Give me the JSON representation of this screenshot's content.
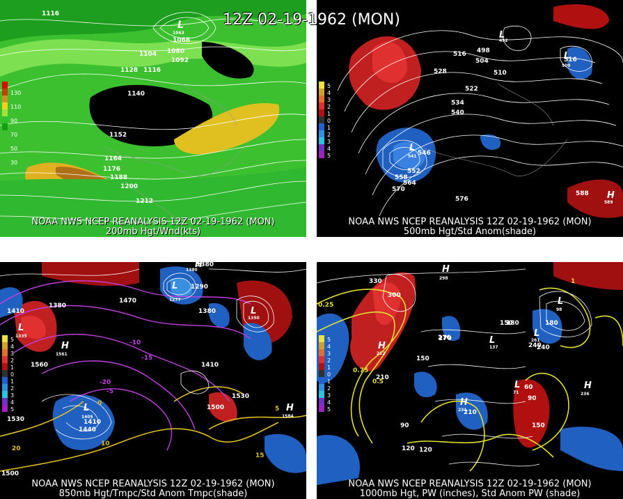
{
  "title": "12Z 02-19-1962 (MON)",
  "panels": [
    {
      "id": "p1",
      "caption_1": "NOAA NWS NCEP REANALYSIS 12Z 02-19-1962 (MON)",
      "caption_2": "200mb Hgt/Wnd(kts)",
      "colorbar": [
        "130",
        "110",
        "90",
        "70",
        "50",
        "30"
      ],
      "contour_labels": [
        "1116",
        "1068",
        "1080",
        "1092",
        "1104",
        "1116",
        "1128",
        "1140",
        "1152",
        "1164",
        "1176",
        "1188",
        "1200",
        "1212"
      ],
      "low_label": "L",
      "low_value": "1063"
    },
    {
      "id": "p2",
      "caption_1": "NOAA NWS NCEP REANALYSIS 12Z 02-19-1962 (MON)",
      "caption_2": "500mb Hgt/Std Anom(shade)",
      "colorbar": [
        "5",
        "4",
        "3",
        "2",
        "1",
        "0",
        "1",
        "2",
        "3",
        "4",
        "5"
      ],
      "contour_labels": [
        "516",
        "498",
        "504",
        "510",
        "516",
        "522",
        "528",
        "534",
        "540",
        "546",
        "552",
        "558",
        "564",
        "570",
        "576",
        "588"
      ],
      "highs": [
        {
          "label": "H",
          "value": "589"
        }
      ],
      "lows": [
        {
          "label": "L",
          "value": "492"
        },
        {
          "label": "L",
          "value": "509"
        },
        {
          "label": "L",
          "value": "541"
        }
      ]
    },
    {
      "id": "p3",
      "caption_1": "NOAA NWS NCEP REANALYSIS 12Z 02-19-1962 (MON)",
      "caption_2": "850mb Hgt/Tmpc/Std Anom Tmpc(shade)",
      "colorbar": [
        "5",
        "4",
        "3",
        "2",
        "1",
        "0",
        "1",
        "2",
        "3",
        "4",
        "5"
      ],
      "contour_labels": [
        "1410",
        "1380",
        "1290",
        "1380",
        "1470",
        "1560",
        "1410",
        "1530",
        "1380",
        "1500",
        "1440",
        "1410",
        "1530",
        "1500"
      ],
      "temp_labels": [
        "-20",
        "-15",
        "-10",
        "-5",
        "0",
        "5",
        "10",
        "15",
        "20"
      ],
      "highs": [
        {
          "label": "H",
          "value": "1380"
        },
        {
          "label": "H",
          "value": "1561"
        },
        {
          "label": "H",
          "value": "1584"
        }
      ],
      "lows": [
        {
          "label": "L",
          "value": "1277"
        },
        {
          "label": "L",
          "value": "1350"
        },
        {
          "label": "L",
          "value": "1335"
        },
        {
          "label": "L",
          "value": "1405"
        }
      ]
    },
    {
      "id": "p4",
      "caption_1": "NOAA NWS NCEP REANALYSIS 12Z 02-19-1962 (MON)",
      "caption_2": "1000mb Hgt, PW (inches), Std Anom PW (shade)",
      "colorbar": [
        "5",
        "4",
        "3",
        "2",
        "1",
        "0",
        "1",
        "2",
        "3",
        "4",
        "5"
      ],
      "contour_labels": [
        "330",
        "300",
        "270",
        "240",
        "210",
        "180",
        "150",
        "120",
        "90",
        "60",
        "270",
        "240",
        "210",
        "150",
        "90",
        "180",
        "150",
        "120"
      ],
      "pw_labels": [
        "0.25",
        "0.5",
        "0.75",
        "1"
      ],
      "highs": [
        {
          "label": "H",
          "value": "298"
        },
        {
          "label": "H",
          "value": "212"
        },
        {
          "label": "H",
          "value": "231"
        },
        {
          "label": "H",
          "value": "236"
        }
      ],
      "lows": [
        {
          "label": "L",
          "value": "137"
        },
        {
          "label": "L",
          "value": "261"
        },
        {
          "label": "L",
          "value": "71"
        },
        {
          "label": "L",
          "value": "98"
        }
      ]
    }
  ],
  "colors": {
    "p1_scale": [
      "#e00000",
      "#c04000",
      "#d09020",
      "#f0d020",
      "#a0e040",
      "#30c030",
      "#10a010"
    ],
    "anom_scale": [
      "#f0e040",
      "#d0a030",
      "#e07030",
      "#e03030",
      "#b01010",
      "#303030",
      "#2060d0",
      "#3090e0",
      "#30c0e0",
      "#7030c0",
      "#a020c0"
    ]
  }
}
